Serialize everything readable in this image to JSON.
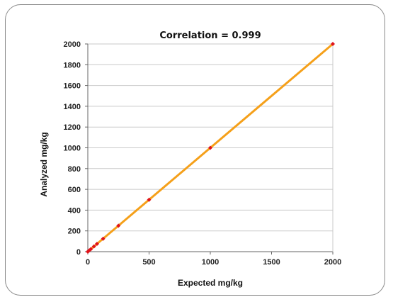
{
  "chart_data": {
    "type": "scatter",
    "title": "Correlation = 0.999",
    "xlabel": "Expected mg/kg",
    "ylabel": "Analyzed mg/kg",
    "xlim": [
      0,
      2000
    ],
    "ylim": [
      0,
      2000
    ],
    "xticks": [
      0,
      500,
      1000,
      1500,
      2000
    ],
    "yticks": [
      0,
      200,
      400,
      600,
      800,
      1000,
      1200,
      1400,
      1600,
      1800,
      2000
    ],
    "grid": "horizontal",
    "points": [
      {
        "x": 0,
        "y": 0
      },
      {
        "x": 10,
        "y": 10
      },
      {
        "x": 25,
        "y": 25
      },
      {
        "x": 50,
        "y": 50
      },
      {
        "x": 75,
        "y": 75
      },
      {
        "x": 125,
        "y": 125
      },
      {
        "x": 250,
        "y": 250
      },
      {
        "x": 500,
        "y": 500
      },
      {
        "x": 1000,
        "y": 1000
      },
      {
        "x": 2000,
        "y": 2000
      }
    ],
    "trendline": {
      "x": [
        0,
        2000
      ],
      "y": [
        0,
        2000
      ]
    },
    "colors": {
      "line": "#f5a01a",
      "points": "#e0141b",
      "grid": "#c9c9c9",
      "axis": "#666666"
    }
  }
}
